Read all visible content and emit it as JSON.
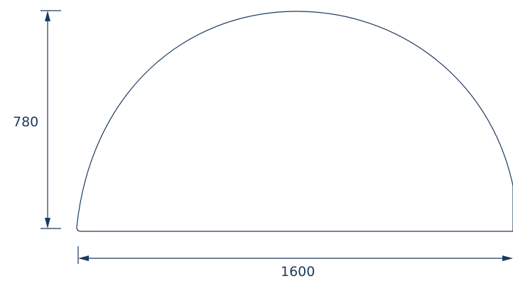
{
  "diagram": {
    "shape": "half-round table top",
    "height_label": "780",
    "width_label": "1600",
    "line_color": "#1c3a5e"
  }
}
